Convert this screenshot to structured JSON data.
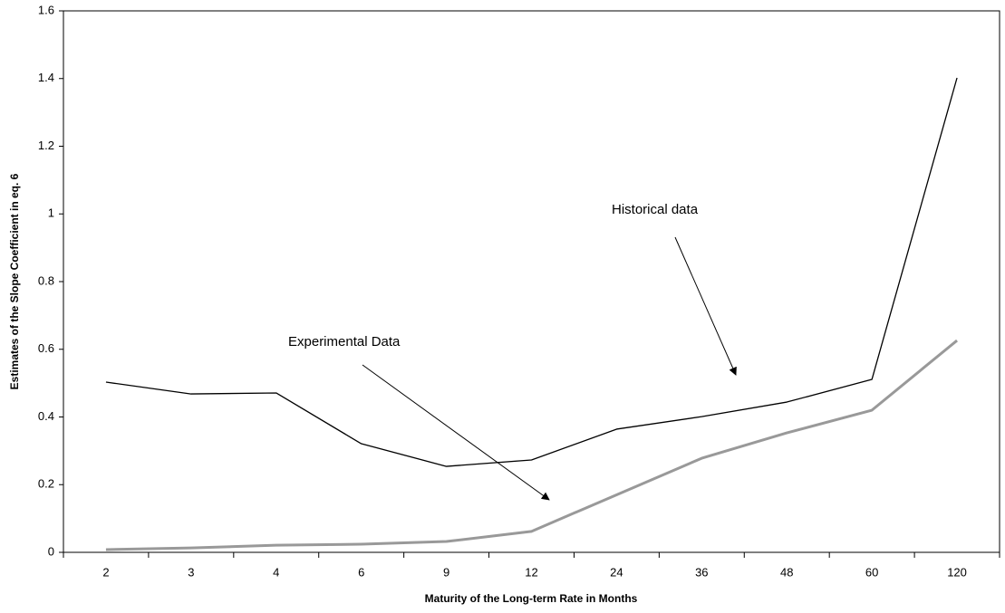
{
  "chart_data": {
    "type": "line",
    "x_label": "Maturity of the Long-term Rate in Months",
    "y_label": "Estimates of the Slope Coefficient in eq. 6",
    "categories": [
      "2",
      "3",
      "4",
      "6",
      "9",
      "12",
      "24",
      "36",
      "48",
      "60",
      "120"
    ],
    "series": [
      {
        "name": "Historical data",
        "color": "#000000",
        "values": [
          0.503,
          0.468,
          0.471,
          0.321,
          0.254,
          0.273,
          0.364,
          0.401,
          0.444,
          0.511,
          1.402
        ]
      },
      {
        "name": "Experimental Data",
        "color": "#999999",
        "values": [
          0.008,
          0.013,
          0.021,
          0.024,
          0.032,
          0.062,
          0.17,
          0.278,
          0.353,
          0.42,
          0.626
        ]
      }
    ],
    "annotations": [
      "Historical data",
      "Experimental Data"
    ],
    "ylim": [
      0,
      1.6
    ],
    "yticks": [
      0,
      0.2,
      0.4,
      0.6,
      0.8,
      1,
      1.2,
      1.4,
      1.6
    ],
    "grid": false
  }
}
